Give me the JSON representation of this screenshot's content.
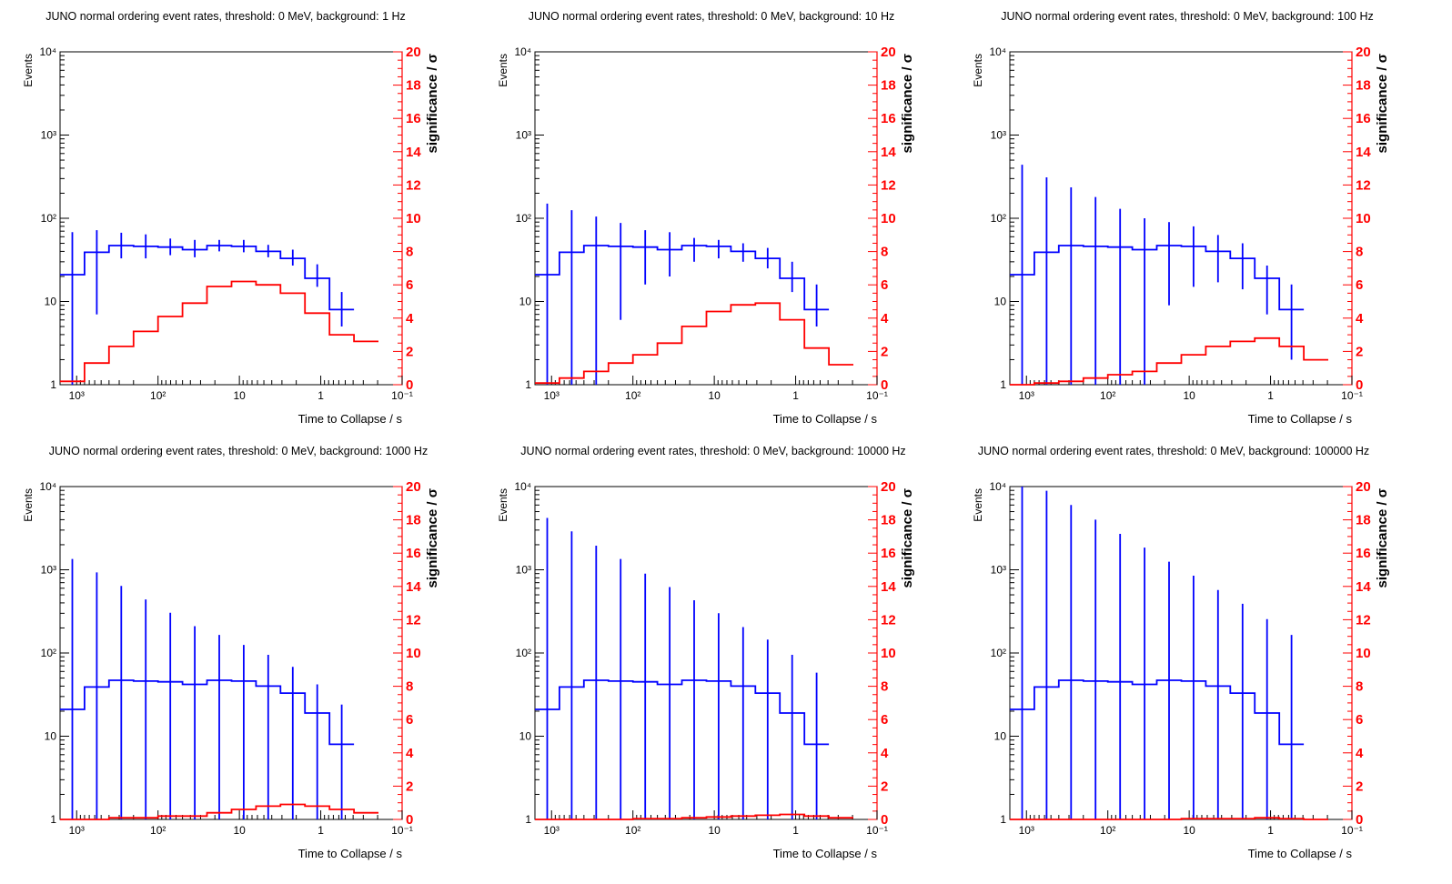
{
  "chart_data": [
    {
      "type": "line",
      "title": "JUNO normal ordering event rates, threshold: 0 MeV, background: 1 Hz",
      "xlabel": "Time to Collapse / s",
      "ylabel": "Events",
      "y2label": "significance / σ",
      "xscale": "log-reversed",
      "xlim": [
        1600,
        0.1
      ],
      "ylim": [
        1,
        10000
      ],
      "y2lim": [
        0,
        20
      ],
      "x_edges": [
        1600,
        800,
        400,
        200,
        100,
        50,
        25,
        12.5,
        6.25,
        3.125,
        1.5625,
        0.78125,
        0.390625,
        0.1953,
        0.1
      ],
      "xticks": [
        "10³",
        "10²",
        "10",
        "1",
        "10⁻¹"
      ],
      "yticks": [
        "1",
        "10",
        "10²",
        "10³",
        "10⁴"
      ],
      "y2ticks": [
        "0",
        "2",
        "4",
        "6",
        "8",
        "10",
        "12",
        "14",
        "16",
        "18",
        "20"
      ],
      "series": [
        {
          "color": "#0000ff",
          "axis": "left",
          "values": [
            21,
            39,
            47,
            46,
            45,
            42,
            47,
            46,
            40,
            33,
            19,
            8
          ],
          "errors_low": [
            1,
            7,
            33,
            33,
            36,
            34,
            40,
            39,
            34,
            27,
            15,
            5
          ],
          "errors_high": [
            68,
            72,
            67,
            64,
            57,
            55,
            55,
            55,
            48,
            42,
            28,
            13
          ]
        },
        {
          "color": "#ff0000",
          "axis": "right",
          "values": [
            0.2,
            1.3,
            2.3,
            3.2,
            4.1,
            4.9,
            5.9,
            6.2,
            6.0,
            5.5,
            4.3,
            3.0,
            2.6
          ]
        }
      ]
    },
    {
      "type": "line",
      "title": "JUNO normal ordering event rates, threshold: 0 MeV, background: 10 Hz",
      "xlabel": "Time to Collapse / s",
      "ylabel": "Events",
      "y2label": "significance / σ",
      "xscale": "log-reversed",
      "xlim": [
        1600,
        0.1
      ],
      "ylim": [
        1,
        10000
      ],
      "y2lim": [
        0,
        20
      ],
      "x_edges": [
        1600,
        800,
        400,
        200,
        100,
        50,
        25,
        12.5,
        6.25,
        3.125,
        1.5625,
        0.78125,
        0.390625,
        0.1953,
        0.1
      ],
      "xticks": [
        "10³",
        "10²",
        "10",
        "1",
        "10⁻¹"
      ],
      "yticks": [
        "1",
        "10",
        "10²",
        "10³",
        "10⁴"
      ],
      "y2ticks": [
        "0",
        "2",
        "4",
        "6",
        "8",
        "10",
        "12",
        "14",
        "16",
        "18",
        "20"
      ],
      "series": [
        {
          "color": "#0000ff",
          "axis": "left",
          "values": [
            21,
            39,
            47,
            46,
            45,
            42,
            47,
            46,
            40,
            33,
            19,
            8
          ],
          "errors_low": [
            1,
            1,
            1,
            6,
            16,
            20,
            30,
            33,
            30,
            25,
            13,
            5
          ],
          "errors_high": [
            150,
            125,
            105,
            88,
            72,
            68,
            58,
            55,
            50,
            44,
            30,
            16
          ]
        },
        {
          "color": "#ff0000",
          "axis": "right",
          "values": [
            0.1,
            0.4,
            0.8,
            1.3,
            1.8,
            2.5,
            3.5,
            4.4,
            4.8,
            4.9,
            3.9,
            2.2,
            1.2
          ]
        }
      ]
    },
    {
      "type": "line",
      "title": "JUNO normal ordering event rates, threshold: 0 MeV, background: 100 Hz",
      "xlabel": "Time to Collapse / s",
      "ylabel": "Events",
      "y2label": "significance / σ",
      "xscale": "log-reversed",
      "xlim": [
        1600,
        0.1
      ],
      "ylim": [
        1,
        10000
      ],
      "y2lim": [
        0,
        20
      ],
      "x_edges": [
        1600,
        800,
        400,
        200,
        100,
        50,
        25,
        12.5,
        6.25,
        3.125,
        1.5625,
        0.78125,
        0.390625,
        0.1953,
        0.1
      ],
      "xticks": [
        "10³",
        "10²",
        "10",
        "1",
        "10⁻¹"
      ],
      "yticks": [
        "1",
        "10",
        "10²",
        "10³",
        "10⁴"
      ],
      "y2ticks": [
        "0",
        "2",
        "4",
        "6",
        "8",
        "10",
        "12",
        "14",
        "16",
        "18",
        "20"
      ],
      "series": [
        {
          "color": "#0000ff",
          "axis": "left",
          "values": [
            21,
            39,
            47,
            46,
            45,
            42,
            47,
            46,
            40,
            33,
            19,
            8
          ],
          "errors_low": [
            1,
            1,
            1,
            1,
            1,
            1,
            9,
            15,
            17,
            14,
            7,
            2
          ],
          "errors_high": [
            440,
            310,
            235,
            180,
            130,
            100,
            90,
            80,
            63,
            50,
            27,
            16
          ]
        },
        {
          "color": "#ff0000",
          "axis": "right",
          "values": [
            0.0,
            0.1,
            0.2,
            0.4,
            0.6,
            0.8,
            1.3,
            1.8,
            2.3,
            2.6,
            2.8,
            2.3,
            1.5
          ]
        }
      ]
    },
    {
      "type": "line",
      "title": "JUNO normal ordering event rates, threshold: 0 MeV, background: 1000 Hz",
      "xlabel": "Time to Collapse / s",
      "ylabel": "Events",
      "y2label": "significance / σ",
      "xscale": "log-reversed",
      "xlim": [
        1600,
        0.1
      ],
      "ylim": [
        1,
        10000
      ],
      "y2lim": [
        0,
        20
      ],
      "x_edges": [
        1600,
        800,
        400,
        200,
        100,
        50,
        25,
        12.5,
        6.25,
        3.125,
        1.5625,
        0.78125,
        0.390625,
        0.1953,
        0.1
      ],
      "xticks": [
        "10³",
        "10²",
        "10",
        "1",
        "10⁻¹"
      ],
      "yticks": [
        "1",
        "10",
        "10²",
        "10³",
        "10⁴"
      ],
      "y2ticks": [
        "0",
        "2",
        "4",
        "6",
        "8",
        "10",
        "12",
        "14",
        "16",
        "18",
        "20"
      ],
      "series": [
        {
          "color": "#0000ff",
          "axis": "left",
          "values": [
            21,
            39,
            47,
            46,
            45,
            42,
            47,
            46,
            40,
            33,
            19,
            8
          ],
          "errors_low": [
            1,
            1,
            1,
            1,
            1,
            1,
            1,
            1,
            1,
            1,
            1,
            1
          ],
          "errors_high": [
            1350,
            930,
            640,
            440,
            305,
            210,
            165,
            125,
            95,
            68,
            42,
            24
          ]
        },
        {
          "color": "#ff0000",
          "axis": "right",
          "values": [
            0.0,
            0.0,
            0.1,
            0.1,
            0.2,
            0.2,
            0.4,
            0.6,
            0.8,
            0.9,
            0.8,
            0.6,
            0.4
          ]
        }
      ]
    },
    {
      "type": "line",
      "title": "JUNO normal ordering event rates, threshold: 0 MeV, background: 10000 Hz",
      "xlabel": "Time to Collapse / s",
      "ylabel": "Events",
      "y2label": "significance / σ",
      "xscale": "log-reversed",
      "xlim": [
        1600,
        0.1
      ],
      "ylim": [
        1,
        10000
      ],
      "y2lim": [
        0,
        20
      ],
      "x_edges": [
        1600,
        800,
        400,
        200,
        100,
        50,
        25,
        12.5,
        6.25,
        3.125,
        1.5625,
        0.78125,
        0.390625,
        0.1953,
        0.1
      ],
      "xticks": [
        "10³",
        "10²",
        "10",
        "1",
        "10⁻¹"
      ],
      "yticks": [
        "1",
        "10",
        "10²",
        "10³",
        "10⁴"
      ],
      "y2ticks": [
        "0",
        "2",
        "4",
        "6",
        "8",
        "10",
        "12",
        "14",
        "16",
        "18",
        "20"
      ],
      "series": [
        {
          "color": "#0000ff",
          "axis": "left",
          "values": [
            21,
            39,
            47,
            46,
            45,
            42,
            47,
            46,
            40,
            33,
            19,
            8
          ],
          "errors_low": [
            1,
            1,
            1,
            1,
            1,
            1,
            1,
            1,
            1,
            1,
            1,
            1
          ],
          "errors_high": [
            4200,
            2900,
            1950,
            1350,
            900,
            620,
            430,
            300,
            205,
            145,
            95,
            58
          ]
        },
        {
          "color": "#ff0000",
          "axis": "right",
          "values": [
            0.0,
            0.0,
            0.0,
            0.0,
            0.05,
            0.05,
            0.1,
            0.15,
            0.2,
            0.25,
            0.3,
            0.2,
            0.1
          ]
        }
      ]
    },
    {
      "type": "line",
      "title": "JUNO normal ordering event rates, threshold: 0 MeV, background: 100000 Hz",
      "xlabel": "Time to Collapse / s",
      "ylabel": "Events",
      "y2label": "significance / σ",
      "xscale": "log-reversed",
      "xlim": [
        1600,
        0.1
      ],
      "ylim": [
        1,
        10000
      ],
      "y2lim": [
        0,
        20
      ],
      "x_edges": [
        1600,
        800,
        400,
        200,
        100,
        50,
        25,
        12.5,
        6.25,
        3.125,
        1.5625,
        0.78125,
        0.390625,
        0.1953,
        0.1
      ],
      "xticks": [
        "10³",
        "10²",
        "10",
        "1",
        "10⁻¹"
      ],
      "yticks": [
        "1",
        "10",
        "10²",
        "10³",
        "10⁴"
      ],
      "y2ticks": [
        "0",
        "2",
        "4",
        "6",
        "8",
        "10",
        "12",
        "14",
        "16",
        "18",
        "20"
      ],
      "series": [
        {
          "color": "#0000ff",
          "axis": "left",
          "values": [
            21,
            39,
            47,
            46,
            45,
            42,
            47,
            46,
            40,
            33,
            19,
            8
          ],
          "errors_low": [
            1,
            1,
            1,
            1,
            1,
            1,
            1,
            1,
            1,
            1,
            1,
            1
          ],
          "errors_high": [
            10000,
            8900,
            6000,
            4000,
            2700,
            1850,
            1250,
            850,
            570,
            390,
            255,
            165
          ]
        },
        {
          "color": "#ff0000",
          "axis": "right",
          "values": [
            0.0,
            0.0,
            0.0,
            0.0,
            0.0,
            0.0,
            0.0,
            0.05,
            0.05,
            0.05,
            0.1,
            0.05,
            0.0
          ]
        }
      ]
    }
  ]
}
